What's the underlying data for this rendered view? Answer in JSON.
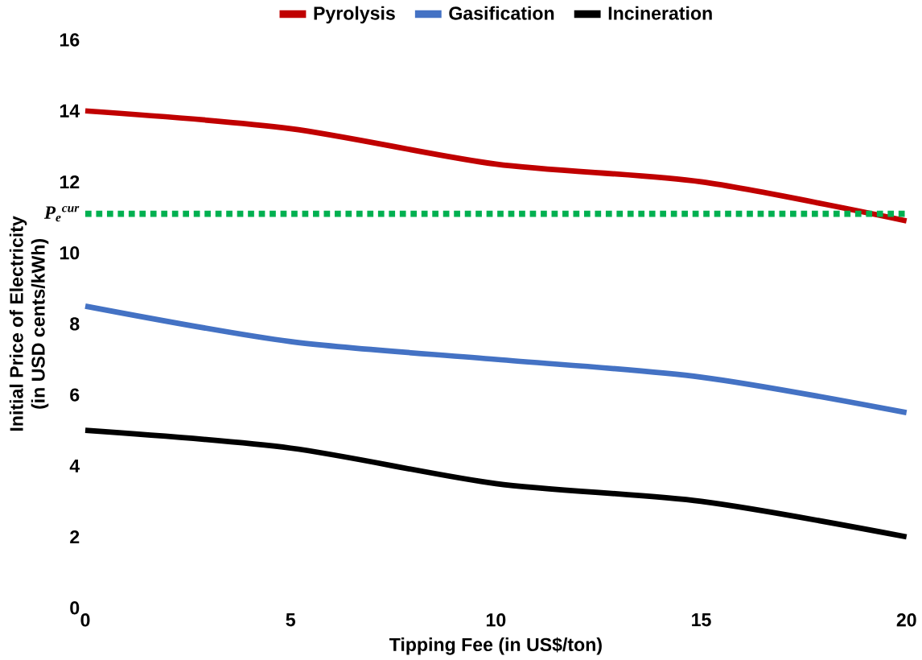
{
  "chart_data": {
    "type": "line",
    "xlabel": "Tipping Fee (in US$/ton)",
    "ylabel": "Initial Price of Electricity\n(in USD cents/kWh)",
    "x": [
      0,
      5,
      10,
      15,
      20
    ],
    "series": [
      {
        "name": "Pyrolysis",
        "color": "#c00000",
        "values": [
          14,
          13.5,
          12.5,
          12,
          10.9
        ]
      },
      {
        "name": "Gasification",
        "color": "#4472c4",
        "values": [
          8.5,
          7.5,
          7.0,
          6.5,
          5.5
        ]
      },
      {
        "name": "Incineration",
        "color": "#000000",
        "values": [
          5,
          4.5,
          3.5,
          3,
          2
        ]
      }
    ],
    "xlim": [
      0,
      20
    ],
    "xticks": [
      0,
      5,
      10,
      15,
      20
    ],
    "ylim": [
      0,
      16
    ],
    "yticks": [
      0,
      2,
      4,
      6,
      8,
      10,
      12,
      14,
      16
    ],
    "ref_lines": [
      {
        "axis": "y",
        "value": 11.1,
        "label": "P$_{e}$$^{cur}$",
        "color": "#00b050",
        "line_style": "dotted"
      }
    ],
    "legend": "top",
    "grid": false,
    "marker": "none",
    "line_style": "solid"
  }
}
